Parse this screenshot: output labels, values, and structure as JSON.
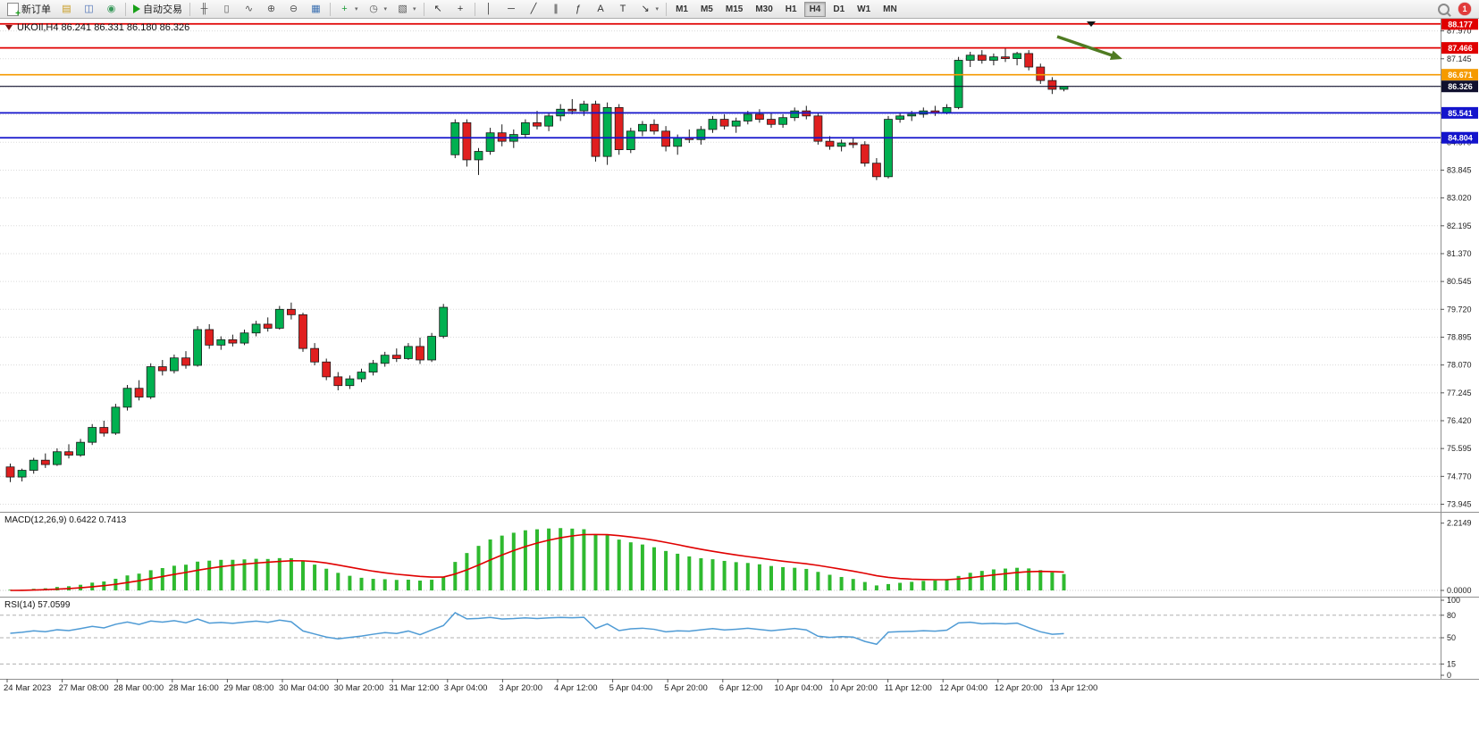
{
  "toolbar": {
    "new_order_label": "新订单",
    "auto_trading_label": "自动交易",
    "notification_count": "1",
    "caret": "▾",
    "timeframes": [
      "M1",
      "M5",
      "M15",
      "M30",
      "H1",
      "H4",
      "D1",
      "W1",
      "MN"
    ],
    "active_timeframe": "H4",
    "icon_groups": {
      "system": [
        {
          "name": "market-watch-icon",
          "glyph": "▤",
          "color": "#c79a1e"
        },
        {
          "name": "data-window-icon",
          "glyph": "◫",
          "color": "#4a6fb5"
        },
        {
          "name": "navigator-icon",
          "glyph": "◉",
          "color": "#3a9a5c"
        }
      ],
      "chartview": [
        {
          "name": "bar-chart-icon",
          "glyph": "╫",
          "color": "#555555"
        },
        {
          "name": "candlestick-chart-icon",
          "glyph": "▯",
          "color": "#555555"
        },
        {
          "name": "line-chart-icon",
          "glyph": "∿",
          "color": "#555555"
        },
        {
          "name": "zoom-in-icon",
          "glyph": "⊕",
          "color": "#555555"
        },
        {
          "name": "zoom-out-icon",
          "glyph": "⊖",
          "color": "#555555"
        },
        {
          "name": "tile-windows-icon",
          "glyph": "▦",
          "color": "#3a6fb0"
        }
      ],
      "dropdowns": [
        {
          "name": "new-chart-icon",
          "glyph": "+",
          "color": "#1f9d3a",
          "caret": true
        },
        {
          "name": "periods-icon",
          "glyph": "◷",
          "color": "#555555",
          "caret": true
        },
        {
          "name": "template-icon",
          "glyph": "▧",
          "color": "#555555",
          "caret": true
        }
      ],
      "cursor": [
        {
          "name": "cursor-icon",
          "glyph": "↖",
          "color": "#333333"
        },
        {
          "name": "crosshair-icon",
          "glyph": "+",
          "color": "#333333"
        }
      ],
      "draw": [
        {
          "name": "vertical-line-icon",
          "glyph": "│",
          "color": "#333333"
        },
        {
          "name": "horizontal-line-icon",
          "glyph": "─",
          "color": "#333333"
        },
        {
          "name": "trendline-icon",
          "glyph": "╱",
          "color": "#333333"
        },
        {
          "name": "channel-icon",
          "glyph": "∥",
          "color": "#333333"
        },
        {
          "name": "fibonacci-icon",
          "glyph": "ƒ",
          "color": "#333333"
        },
        {
          "name": "text-icon",
          "glyph": "A",
          "color": "#333333"
        },
        {
          "name": "label-icon",
          "glyph": "T",
          "color": "#333333"
        },
        {
          "name": "arrows-icon",
          "glyph": "↘",
          "color": "#333333",
          "caret": true
        }
      ]
    }
  },
  "chart_data": {
    "type": "candlestick",
    "symbol_title": "UKOIl,H4  86.241 86.331 86.180 86.326",
    "ohlc_current": {
      "open": "86.241",
      "high": "86.331",
      "low": "86.180",
      "close": "86.326"
    },
    "up_color": "#00b050",
    "down_color": "#e01f1f",
    "outline_color": "#1a1a1a",
    "price_ticks": [
      "87.970",
      "87.145",
      "86.320",
      "85.495",
      "84.670",
      "83.845",
      "83.020",
      "82.195",
      "81.370",
      "80.545",
      "79.720",
      "78.895",
      "78.070",
      "77.245",
      "76.420",
      "75.595",
      "74.770",
      "73.945"
    ],
    "time_labels": [
      "24 Mar 2023",
      "27 Mar 08:00",
      "28 Mar 00:00",
      "28 Mar 16:00",
      "29 Mar 08:00",
      "30 Mar 04:00",
      "30 Mar 20:00",
      "31 Mar 12:00",
      "3 Apr 04:00",
      "3 Apr 20:00",
      "4 Apr 12:00",
      "5 Apr 04:00",
      "5 Apr 20:00",
      "6 Apr 12:00",
      "10 Apr 04:00",
      "10 Apr 20:00",
      "11 Apr 12:00",
      "12 Apr 04:00",
      "12 Apr 20:00",
      "13 Apr 12:00"
    ],
    "price_lines": [
      {
        "price": 88.177,
        "label": "88.177",
        "color": "#e00000"
      },
      {
        "price": 87.466,
        "label": "87.466",
        "color": "#e00000"
      },
      {
        "price": 86.671,
        "label": "86.671",
        "color": "#f59a00"
      },
      {
        "price": 85.541,
        "label": "85.541",
        "color": "#1414cc"
      },
      {
        "price": 84.804,
        "label": "84.804",
        "color": "#1414cc"
      }
    ],
    "current_price": {
      "price": 86.326,
      "label": "86.326",
      "color": "#10102e"
    },
    "annotation_arrow": {
      "color": "#4f7b22"
    },
    "candles": [
      [
        75.05,
        75.15,
        74.6,
        74.75
      ],
      [
        74.75,
        75.0,
        74.62,
        74.95
      ],
      [
        74.95,
        75.32,
        74.85,
        75.25
      ],
      [
        75.25,
        75.45,
        75.02,
        75.12
      ],
      [
        75.12,
        75.6,
        75.08,
        75.5
      ],
      [
        75.5,
        75.72,
        75.3,
        75.4
      ],
      [
        75.4,
        75.88,
        75.35,
        75.78
      ],
      [
        75.78,
        76.32,
        75.7,
        76.22
      ],
      [
        76.22,
        76.42,
        75.95,
        76.05
      ],
      [
        76.05,
        76.92,
        76.0,
        76.82
      ],
      [
        76.82,
        77.48,
        76.72,
        77.38
      ],
      [
        77.38,
        77.62,
        77.02,
        77.12
      ],
      [
        77.12,
        78.12,
        77.06,
        78.02
      ],
      [
        78.02,
        78.22,
        77.76,
        77.9
      ],
      [
        77.9,
        78.38,
        77.82,
        78.28
      ],
      [
        78.28,
        78.48,
        77.96,
        78.06
      ],
      [
        78.06,
        79.22,
        78.02,
        79.12
      ],
      [
        79.12,
        79.28,
        78.55,
        78.66
      ],
      [
        78.66,
        78.92,
        78.52,
        78.82
      ],
      [
        78.82,
        78.97,
        78.62,
        78.72
      ],
      [
        78.72,
        79.12,
        78.66,
        79.02
      ],
      [
        79.02,
        79.38,
        78.92,
        79.28
      ],
      [
        79.28,
        79.48,
        79.06,
        79.16
      ],
      [
        79.16,
        79.82,
        79.12,
        79.72
      ],
      [
        79.72,
        79.92,
        79.42,
        79.56
      ],
      [
        79.56,
        79.62,
        78.46,
        78.56
      ],
      [
        78.56,
        78.72,
        78.06,
        78.16
      ],
      [
        78.16,
        78.26,
        77.62,
        77.72
      ],
      [
        77.72,
        77.86,
        77.32,
        77.46
      ],
      [
        77.46,
        77.76,
        77.36,
        77.66
      ],
      [
        77.66,
        77.96,
        77.56,
        77.86
      ],
      [
        77.86,
        78.22,
        77.76,
        78.12
      ],
      [
        78.12,
        78.46,
        78.02,
        78.36
      ],
      [
        78.36,
        78.56,
        78.16,
        78.26
      ],
      [
        78.26,
        78.72,
        78.22,
        78.62
      ],
      [
        78.62,
        78.88,
        78.1,
        78.22
      ],
      [
        78.22,
        79.02,
        78.16,
        78.92
      ],
      [
        78.92,
        79.88,
        78.86,
        79.78
      ],
      [
        84.3,
        85.35,
        84.2,
        85.25
      ],
      [
        85.25,
        85.35,
        83.95,
        84.15
      ],
      [
        84.15,
        84.5,
        83.7,
        84.4
      ],
      [
        84.4,
        85.1,
        84.3,
        84.95
      ],
      [
        84.95,
        85.2,
        84.55,
        84.7
      ],
      [
        84.7,
        85.05,
        84.5,
        84.9
      ],
      [
        84.9,
        85.35,
        84.8,
        85.25
      ],
      [
        85.25,
        85.6,
        85.05,
        85.15
      ],
      [
        85.15,
        85.55,
        85.0,
        85.45
      ],
      [
        85.45,
        85.8,
        85.3,
        85.65
      ],
      [
        85.65,
        85.95,
        85.5,
        85.6
      ],
      [
        85.6,
        85.9,
        85.45,
        85.8
      ],
      [
        85.8,
        85.9,
        84.1,
        84.25
      ],
      [
        84.25,
        85.85,
        84.0,
        85.7
      ],
      [
        85.7,
        85.8,
        84.3,
        84.45
      ],
      [
        84.45,
        85.1,
        84.35,
        85.0
      ],
      [
        85.0,
        85.3,
        84.85,
        85.2
      ],
      [
        85.2,
        85.35,
        84.9,
        85.0
      ],
      [
        85.0,
        85.15,
        84.4,
        84.55
      ],
      [
        84.55,
        84.9,
        84.3,
        84.8
      ],
      [
        84.8,
        85.05,
        84.65,
        84.75
      ],
      [
        84.75,
        85.15,
        84.6,
        85.05
      ],
      [
        85.05,
        85.45,
        84.95,
        85.35
      ],
      [
        85.35,
        85.5,
        85.05,
        85.15
      ],
      [
        85.15,
        85.4,
        84.95,
        85.3
      ],
      [
        85.3,
        85.6,
        85.2,
        85.5
      ],
      [
        85.5,
        85.65,
        85.25,
        85.35
      ],
      [
        85.35,
        85.55,
        85.1,
        85.2
      ],
      [
        85.2,
        85.5,
        85.1,
        85.4
      ],
      [
        85.4,
        85.7,
        85.3,
        85.6
      ],
      [
        85.6,
        85.75,
        85.35,
        85.45
      ],
      [
        85.45,
        85.55,
        84.6,
        84.7
      ],
      [
        84.7,
        84.85,
        84.45,
        84.55
      ],
      [
        84.55,
        84.75,
        84.4,
        84.65
      ],
      [
        84.65,
        84.8,
        84.5,
        84.6
      ],
      [
        84.6,
        84.7,
        83.95,
        84.05
      ],
      [
        84.05,
        84.2,
        83.55,
        83.65
      ],
      [
        83.65,
        85.45,
        83.6,
        85.35
      ],
      [
        85.35,
        85.55,
        85.25,
        85.45
      ],
      [
        85.45,
        85.6,
        85.3,
        85.5
      ],
      [
        85.5,
        85.7,
        85.4,
        85.6
      ],
      [
        85.6,
        85.75,
        85.45,
        85.55
      ],
      [
        85.55,
        85.8,
        85.5,
        85.7
      ],
      [
        85.7,
        87.2,
        85.65,
        87.1
      ],
      [
        87.1,
        87.35,
        86.9,
        87.25
      ],
      [
        87.25,
        87.4,
        87.0,
        87.1
      ],
      [
        87.1,
        87.3,
        86.95,
        87.2
      ],
      [
        87.2,
        87.45,
        87.05,
        87.15
      ],
      [
        87.15,
        87.35,
        86.95,
        87.3
      ],
      [
        87.3,
        87.4,
        86.8,
        86.9
      ],
      [
        86.9,
        87.0,
        86.4,
        86.5
      ],
      [
        86.5,
        86.6,
        86.1,
        86.24
      ],
      [
        86.241,
        86.331,
        86.18,
        86.326
      ]
    ],
    "macd": {
      "label": "MACD(12,26,9) 0.6422 0.7413",
      "fast": 12,
      "slow": 26,
      "signal": 9,
      "max_tick": "2.2149",
      "zero_tick": "0.0000",
      "histogram_color": "#2fba2f",
      "signal_color": "#e00000"
    },
    "rsi": {
      "label": "RSI(14) 57.0599",
      "period": 14,
      "level_labels": [
        "100",
        "80",
        "50",
        "15",
        "0"
      ],
      "line_color": "#4f9bd5"
    }
  }
}
